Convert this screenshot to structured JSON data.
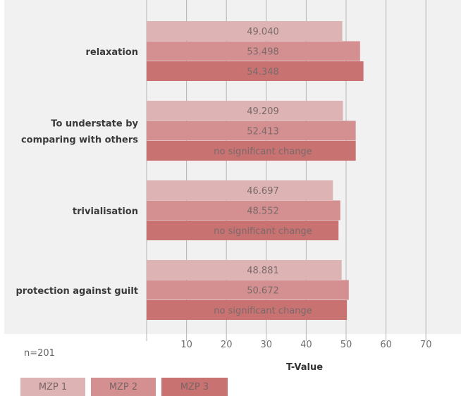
{
  "chart_data": {
    "type": "bar",
    "orientation": "horizontal",
    "categories": [
      "relaxation",
      "To understate by comparing with others",
      "trivialisation",
      "protection against guilt"
    ],
    "series": [
      {
        "name": "MZP 1",
        "color": "#ddb3b4",
        "values": [
          49.04,
          49.209,
          46.697,
          48.881
        ],
        "labels": [
          "49.040",
          "49.209",
          "46.697",
          "48.881"
        ]
      },
      {
        "name": "MZP 2",
        "color": "#d49091",
        "values": [
          53.498,
          52.413,
          48.552,
          50.672
        ],
        "labels": [
          "53.498",
          "52.413",
          "48.552",
          "50.672"
        ]
      },
      {
        "name": "MZP 3",
        "color": "#c87272",
        "values": [
          54.348,
          52.413,
          48.1,
          50.2
        ],
        "labels": [
          "54.348",
          "no significant change",
          "no significant change",
          "no significant change"
        ]
      }
    ],
    "xlabel": "T-Value",
    "xticks": [
      10,
      20,
      30,
      40,
      50,
      60,
      70
    ],
    "xlim": [
      0,
      70
    ],
    "grid": true,
    "legend": "bottom",
    "note": "n=201"
  }
}
